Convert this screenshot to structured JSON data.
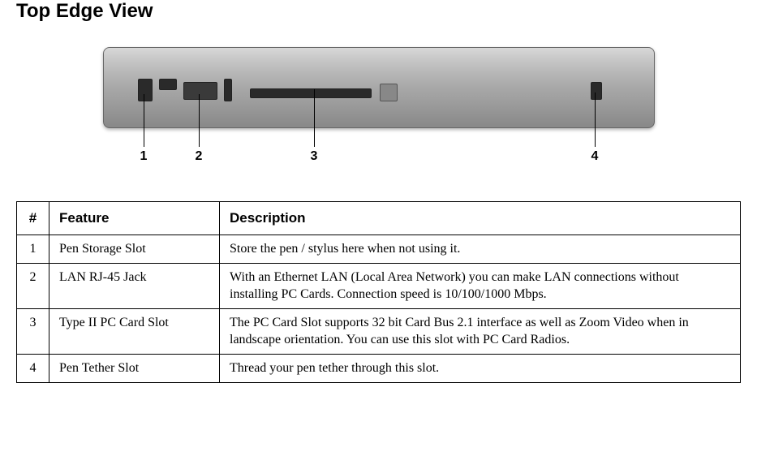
{
  "title": "Top Edge View",
  "diagram": {
    "callouts": [
      {
        "num": "1"
      },
      {
        "num": "2"
      },
      {
        "num": "3"
      },
      {
        "num": "4"
      }
    ]
  },
  "table": {
    "headers": {
      "num": "#",
      "feature": "Feature",
      "description": "Description"
    },
    "rows": [
      {
        "num": "1",
        "feature": "Pen Storage Slot",
        "description": "Store the pen / stylus here when not using it."
      },
      {
        "num": "2",
        "feature": "LAN RJ-45 Jack",
        "description": "With an Ethernet LAN (Local Area Network) you can make LAN connections without installing PC Cards.  Connection speed is 10/100/1000 Mbps."
      },
      {
        "num": "3",
        "feature": "Type II PC Card Slot",
        "description": "The PC Card Slot supports 32 bit Card Bus 2.1 interface as well as Zoom Video when in landscape orientation. You can use this slot with PC Card Radios."
      },
      {
        "num": "4",
        "feature": "Pen Tether Slot",
        "description": "Thread your pen tether through this slot."
      }
    ]
  }
}
